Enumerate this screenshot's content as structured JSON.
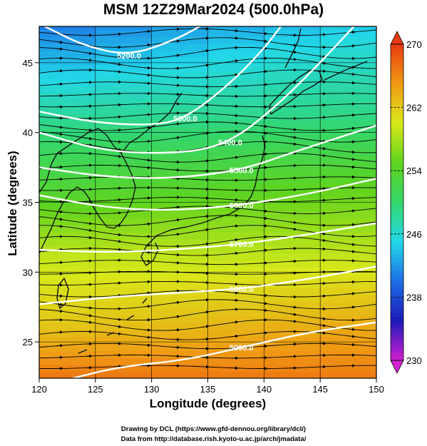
{
  "title": "MSM 12Z29Mar2024 (500.0hPa)",
  "credits": {
    "line1": "Drawing by DCL (https://www.gfd-dennou.org/library/dcl/)",
    "line2": "Data from http://database.rish.kyoto-u.ac.jp/arch/jmadata/"
  },
  "chart_data": {
    "type": "heatmap",
    "title": "MSM 12Z29Mar2024 (500.0hPa)",
    "xlabel": "Longitude (degrees)",
    "ylabel": "Latitude  (degrees)",
    "xlim": [
      120,
      150
    ],
    "ylim": [
      22.4,
      47.6
    ],
    "x_ticks": [
      120,
      125,
      130,
      135,
      140,
      145,
      150
    ],
    "y_ticks": [
      25,
      30,
      35,
      40,
      45
    ],
    "fill_variable": "temperature (K)",
    "colorbar": {
      "range": [
        230,
        270
      ],
      "ticks": [
        230,
        238,
        246,
        254,
        262,
        270
      ],
      "colors": [
        "#d21fd2",
        "#1b1bb8",
        "#1e6ee6",
        "#22d8e8",
        "#34d66a",
        "#5fd41e",
        "#d8e81a",
        "#f09a14",
        "#e83a10"
      ]
    },
    "temperature_band_estimates": [
      {
        "lat": 46,
        "lon_west": 242,
        "lon_east": 246
      },
      {
        "lat": 41,
        "lon_west": 248,
        "lon_east": 249
      },
      {
        "lat": 36,
        "lon_west": 253,
        "lon_east": 255
      },
      {
        "lat": 31,
        "lon_west": 259,
        "lon_east": 259
      },
      {
        "lat": 26,
        "lon_west": 262,
        "lon_east": 264
      },
      {
        "lat": 23,
        "lon_west": 266,
        "lon_east": 266
      }
    ],
    "height_contours": [
      {
        "label": "5200.0",
        "points": [
          [
            120.5,
            47.6
          ],
          [
            124,
            46.2
          ],
          [
            128,
            45.5
          ],
          [
            132,
            46.6
          ],
          [
            134.3,
            47.6
          ]
        ]
      },
      {
        "label": "5300.0",
        "points": [
          [
            120,
            41.5
          ],
          [
            125,
            40.7
          ],
          [
            130,
            40.5
          ],
          [
            133,
            41
          ],
          [
            137,
            43.5
          ],
          [
            140,
            46
          ],
          [
            141.5,
            47.6
          ]
        ]
      },
      {
        "label": "5400.0",
        "points": [
          [
            120,
            40
          ],
          [
            126,
            38.6
          ],
          [
            133,
            38.5
          ],
          [
            137,
            39.3
          ],
          [
            141,
            41.8
          ],
          [
            145,
            45
          ],
          [
            148,
            47.6
          ]
        ]
      },
      {
        "label": "5500.0",
        "points": [
          [
            120,
            37.5
          ],
          [
            126,
            36.8
          ],
          [
            132,
            36.7
          ],
          [
            138,
            37.3
          ],
          [
            143,
            38.7
          ],
          [
            150,
            40.5
          ]
        ]
      },
      {
        "label": "5600.0",
        "points": [
          [
            120,
            35.5
          ],
          [
            126,
            34.6
          ],
          [
            132,
            34.4
          ],
          [
            138,
            34.8
          ],
          [
            144,
            35.6
          ],
          [
            150,
            36.7
          ]
        ]
      },
      {
        "label": "5700.0",
        "points": [
          [
            120,
            31.6
          ],
          [
            126,
            31.4
          ],
          [
            132,
            31.6
          ],
          [
            138,
            32
          ],
          [
            144,
            32.7
          ],
          [
            150,
            33.5
          ]
        ]
      },
      {
        "label": "5800.0",
        "points": [
          [
            120,
            27.7
          ],
          [
            126,
            28.2
          ],
          [
            132,
            28.5
          ],
          [
            138,
            28.8
          ],
          [
            144,
            29.5
          ],
          [
            150,
            30.4
          ]
        ]
      },
      {
        "label": "5900.0",
        "points": [
          [
            123,
            22.4
          ],
          [
            127,
            23.2
          ],
          [
            133,
            23.7
          ],
          [
            138,
            24.6
          ],
          [
            144,
            25.7
          ],
          [
            150,
            26.4
          ]
        ]
      }
    ],
    "wind": "westerly streamlines, strongest between 33 and 45 degrees N",
    "grid": true,
    "legend": "colorbar on right"
  }
}
